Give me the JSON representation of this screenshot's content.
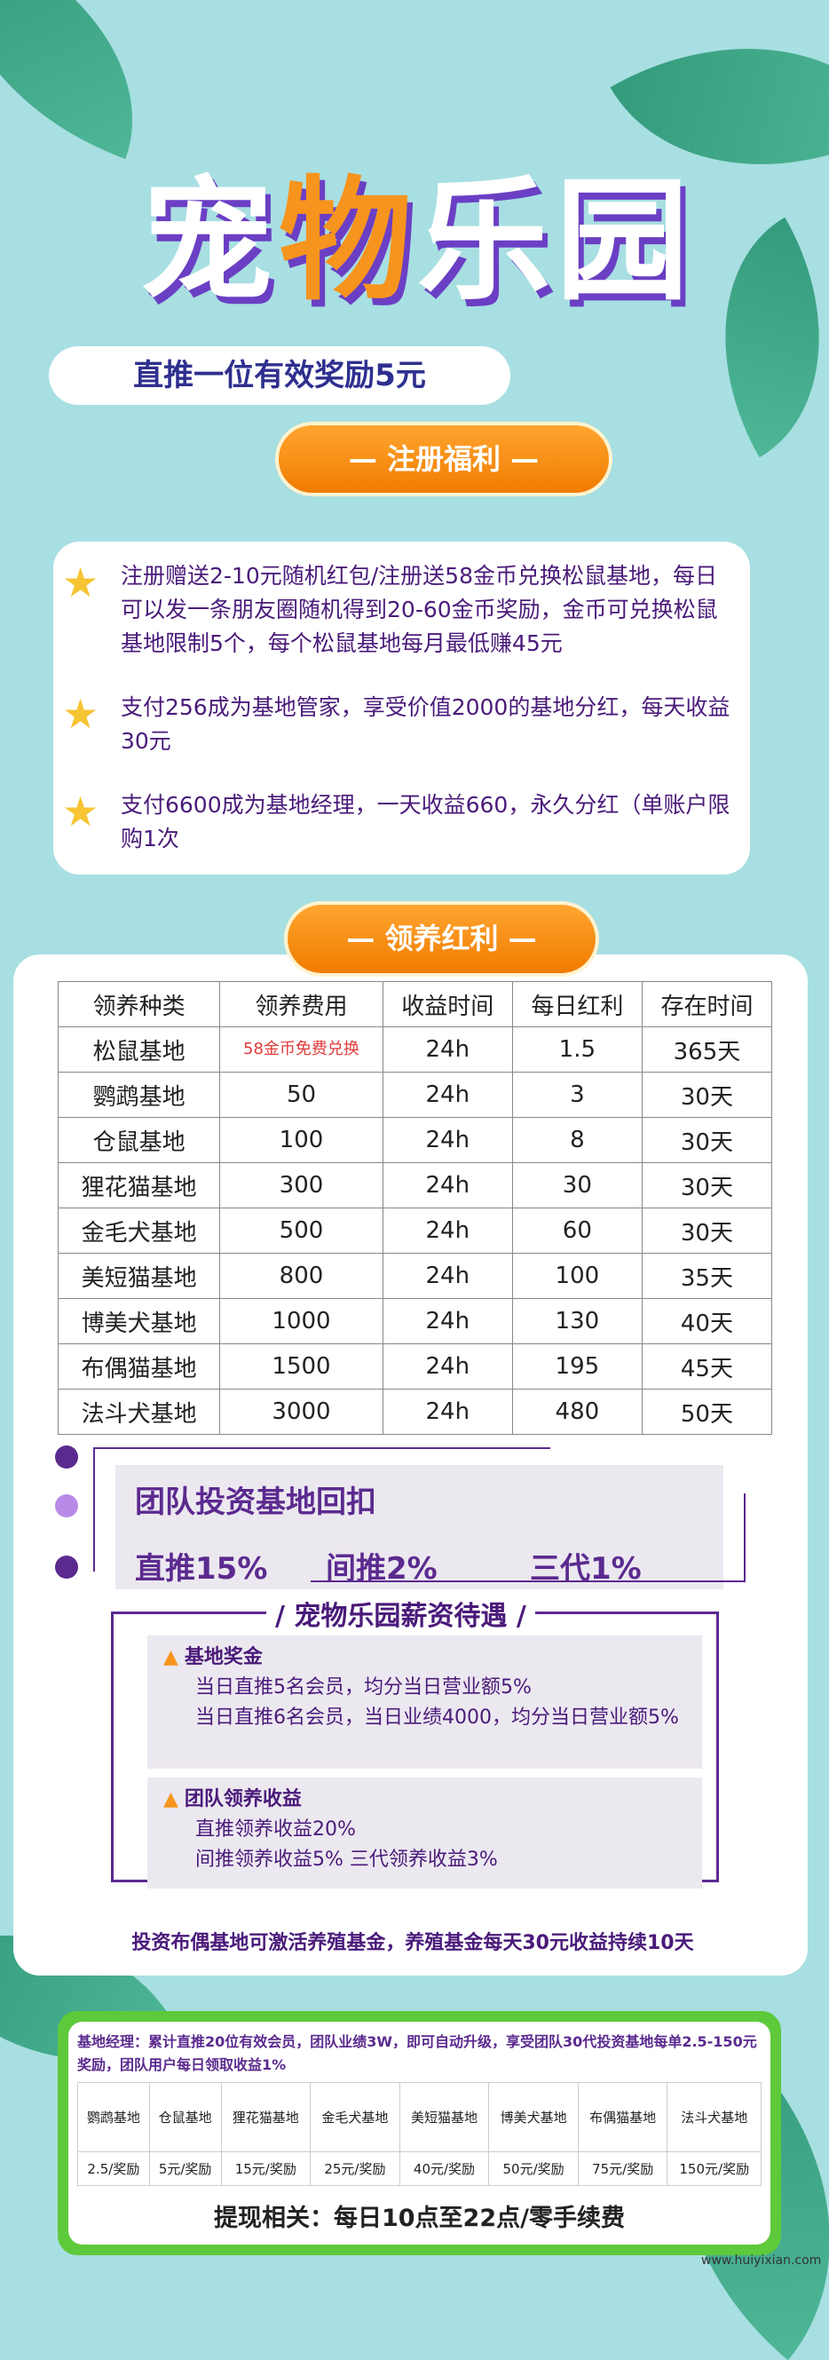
{
  "header": {
    "title_parts": [
      "宠",
      "物",
      "乐园"
    ],
    "subtitle": "直推一位有效奖励5元"
  },
  "register": {
    "label": "—   注册福利   —",
    "items": [
      "注册赠送2-10元随机红包/注册送58金币兑换松鼠基地，每日可以发一条朋友圈随机得到20-60金币奖励，金币可兑换松鼠基地限制5个，每个松鼠基地每月最低赚45元",
      "支付256成为基地管家，享受价值2000的基地分红，每天收益30元",
      "支付6600成为基地经理，一天收益660，永久分红（单账户限购1次"
    ]
  },
  "adopt": {
    "label": "—   领养红利   —",
    "headers": [
      "领养种类",
      "领养费用",
      "收益时间",
      "每日红利",
      "存在时间"
    ],
    "rows": [
      [
        "松鼠基地",
        "58金币免费兑换",
        "24h",
        "1.5",
        "365天"
      ],
      [
        "鹦鹉基地",
        "50",
        "24h",
        "3",
        "30天"
      ],
      [
        "仓鼠基地",
        "100",
        "24h",
        "8",
        "30天"
      ],
      [
        "狸花猫基地",
        "300",
        "24h",
        "30",
        "30天"
      ],
      [
        "金毛犬基地",
        "500",
        "24h",
        "60",
        "30天"
      ],
      [
        "美短猫基地",
        "800",
        "24h",
        "100",
        "35天"
      ],
      [
        "博美犬基地",
        "1000",
        "24h",
        "130",
        "40天"
      ],
      [
        "布偶猫基地",
        "1500",
        "24h",
        "195",
        "45天"
      ],
      [
        "法斗犬基地",
        "3000",
        "24h",
        "480",
        "50天"
      ]
    ]
  },
  "team": {
    "title": "团队投资基地回扣",
    "direct": "直推15%",
    "indirect": "间推2%",
    "third": "三代1%"
  },
  "salary": {
    "title": "/ 宠物乐园薪资待遇 /",
    "base": {
      "title": "基地奖金",
      "lines": [
        "当日直推5名会员，均分当日营业额5%",
        "当日直推6名会员，当日业绩4000，均分当日营业额5%"
      ]
    },
    "adopt": {
      "title": "团队领养收益",
      "lines": [
        "直推领养收益20%",
        "间推领养收益5%    三代领养收益3%"
      ]
    }
  },
  "note": "投资布偶基地可激活养殖基金，养殖基金每天30元收益持续10天",
  "manager": {
    "text": "基地经理：累计直推20位有效会员，团队业绩3W，即可自动升级，享受团队30代投资基地每单2.5-150元奖励，团队用户每日领取收益1%",
    "names": [
      "鹦鹉基地",
      "仓鼠基地",
      "狸花猫基地",
      "金毛犬基地",
      "美短猫基地",
      "博美犬基地",
      "布偶猫基地",
      "法斗犬基地"
    ],
    "rewards": [
      "2.5/奖励",
      "5元/奖励",
      "15元/奖励",
      "25元/奖励",
      "40元/奖励",
      "50元/奖励",
      "75元/奖励",
      "150元/奖励"
    ],
    "withdraw": "提现相关：每日10点至22点/零手续费"
  },
  "watermark": "www.huiyixian.com",
  "colors": {
    "orange": "#f7941d",
    "purple": "#5b2a8f",
    "green": "#5ec93a",
    "bg": "#a8dfe2"
  }
}
